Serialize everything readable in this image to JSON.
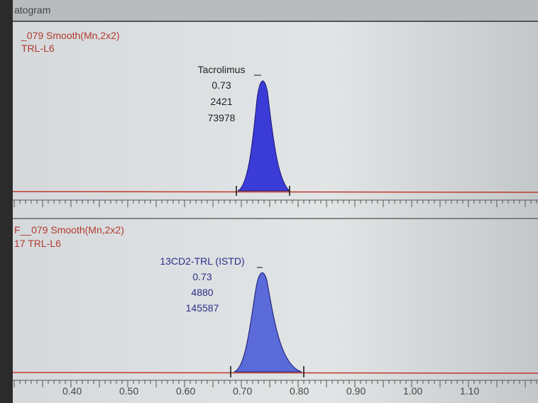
{
  "window": {
    "title": "atogram"
  },
  "panels": [
    {
      "trace": "_079 Smooth(Mn,2x2)",
      "sample": "TRL-L6",
      "peak": {
        "name": "Tacrolimus",
        "rt": "0.73",
        "height": "2421",
        "area": "73978"
      }
    },
    {
      "trace": "F__079 Smooth(Mn,2x2)",
      "sample": "17 TRL-L6",
      "peak": {
        "name": "13CD2-TRL (ISTD)",
        "rt": "0.73",
        "height": "4880",
        "area": "145587"
      }
    }
  ],
  "x_axis": {
    "labels": [
      "0.40",
      "0.50",
      "0.60",
      "0.70",
      "0.80",
      "0.90",
      "1.00",
      "1.10"
    ]
  }
}
